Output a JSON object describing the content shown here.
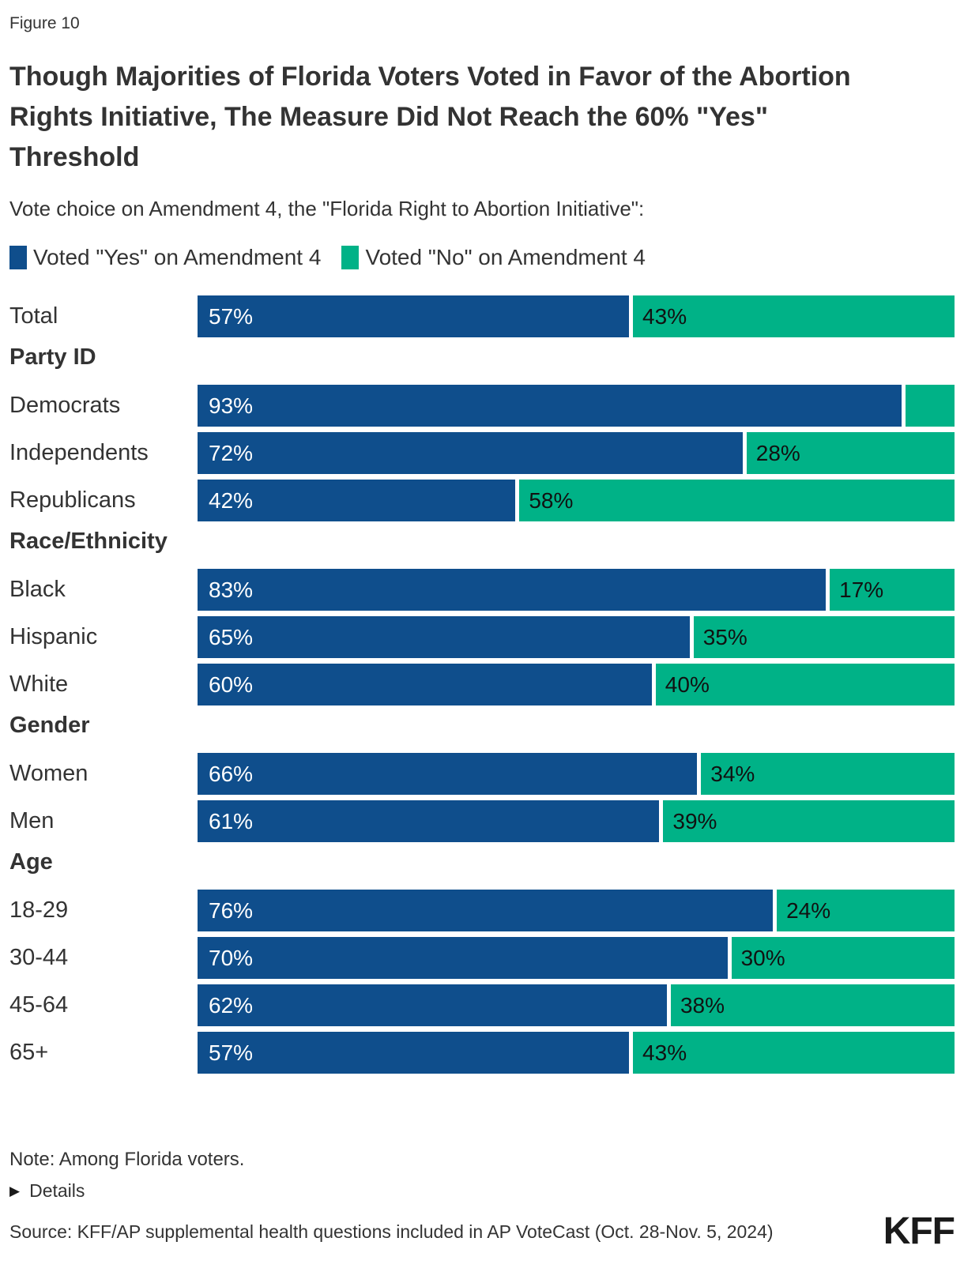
{
  "figure_label": "Figure 10",
  "title": "Though Majorities of Florida Voters Voted in Favor of the Abortion Rights Initiative, The Measure Did Not Reach the 60% \"Yes\" Threshold",
  "subtitle": "Vote choice on Amendment 4, the \"Florida Right to Abortion Initiative\":",
  "legend": [
    {
      "label": "Voted \"Yes\" on Amendment 4",
      "color": "#0F4E8C"
    },
    {
      "label": "Voted \"No\" on Amendment 4",
      "color": "#00B287"
    }
  ],
  "chart_data": {
    "type": "bar",
    "orientation": "horizontal",
    "stacked": true,
    "unit": "percent",
    "xlim": [
      0,
      100
    ],
    "series_names": [
      "Voted \"Yes\" on Amendment 4",
      "Voted \"No\" on Amendment 4"
    ],
    "colors": {
      "yes": "#0F4E8C",
      "no": "#00B287"
    },
    "rows": [
      {
        "type": "bar",
        "label": "Total",
        "yes": 57,
        "no": 43,
        "yes_label": "57%",
        "no_label": "43%"
      },
      {
        "type": "header",
        "label": "Party ID"
      },
      {
        "type": "bar",
        "label": "Democrats",
        "yes": 93,
        "no": 7,
        "yes_label": "93%",
        "no_label": ""
      },
      {
        "type": "bar",
        "label": "Independents",
        "yes": 72,
        "no": 28,
        "yes_label": "72%",
        "no_label": "28%"
      },
      {
        "type": "bar",
        "label": "Republicans",
        "yes": 42,
        "no": 58,
        "yes_label": "42%",
        "no_label": "58%"
      },
      {
        "type": "header",
        "label": "Race/Ethnicity"
      },
      {
        "type": "bar",
        "label": "Black",
        "yes": 83,
        "no": 17,
        "yes_label": "83%",
        "no_label": "17%"
      },
      {
        "type": "bar",
        "label": "Hispanic",
        "yes": 65,
        "no": 35,
        "yes_label": "65%",
        "no_label": "35%"
      },
      {
        "type": "bar",
        "label": "White",
        "yes": 60,
        "no": 40,
        "yes_label": "60%",
        "no_label": "40%"
      },
      {
        "type": "header",
        "label": "Gender"
      },
      {
        "type": "bar",
        "label": "Women",
        "yes": 66,
        "no": 34,
        "yes_label": "66%",
        "no_label": "34%"
      },
      {
        "type": "bar",
        "label": "Men",
        "yes": 61,
        "no": 39,
        "yes_label": "61%",
        "no_label": "39%"
      },
      {
        "type": "header",
        "label": "Age"
      },
      {
        "type": "bar",
        "label": "18-29",
        "yes": 76,
        "no": 24,
        "yes_label": "76%",
        "no_label": "24%"
      },
      {
        "type": "bar",
        "label": "30-44",
        "yes": 70,
        "no": 30,
        "yes_label": "70%",
        "no_label": "30%"
      },
      {
        "type": "bar",
        "label": "45-64",
        "yes": 62,
        "no": 38,
        "yes_label": "62%",
        "no_label": "38%"
      },
      {
        "type": "bar",
        "label": "65+",
        "yes": 57,
        "no": 43,
        "yes_label": "57%",
        "no_label": "43%"
      }
    ]
  },
  "note": "Note: Among Florida voters.",
  "details": {
    "label": "Details",
    "icon": "right-triangle"
  },
  "source": "Source: KFF/AP supplemental health questions included in AP VoteCast (Oct. 28-Nov. 5, 2024)",
  "logo": "KFF"
}
